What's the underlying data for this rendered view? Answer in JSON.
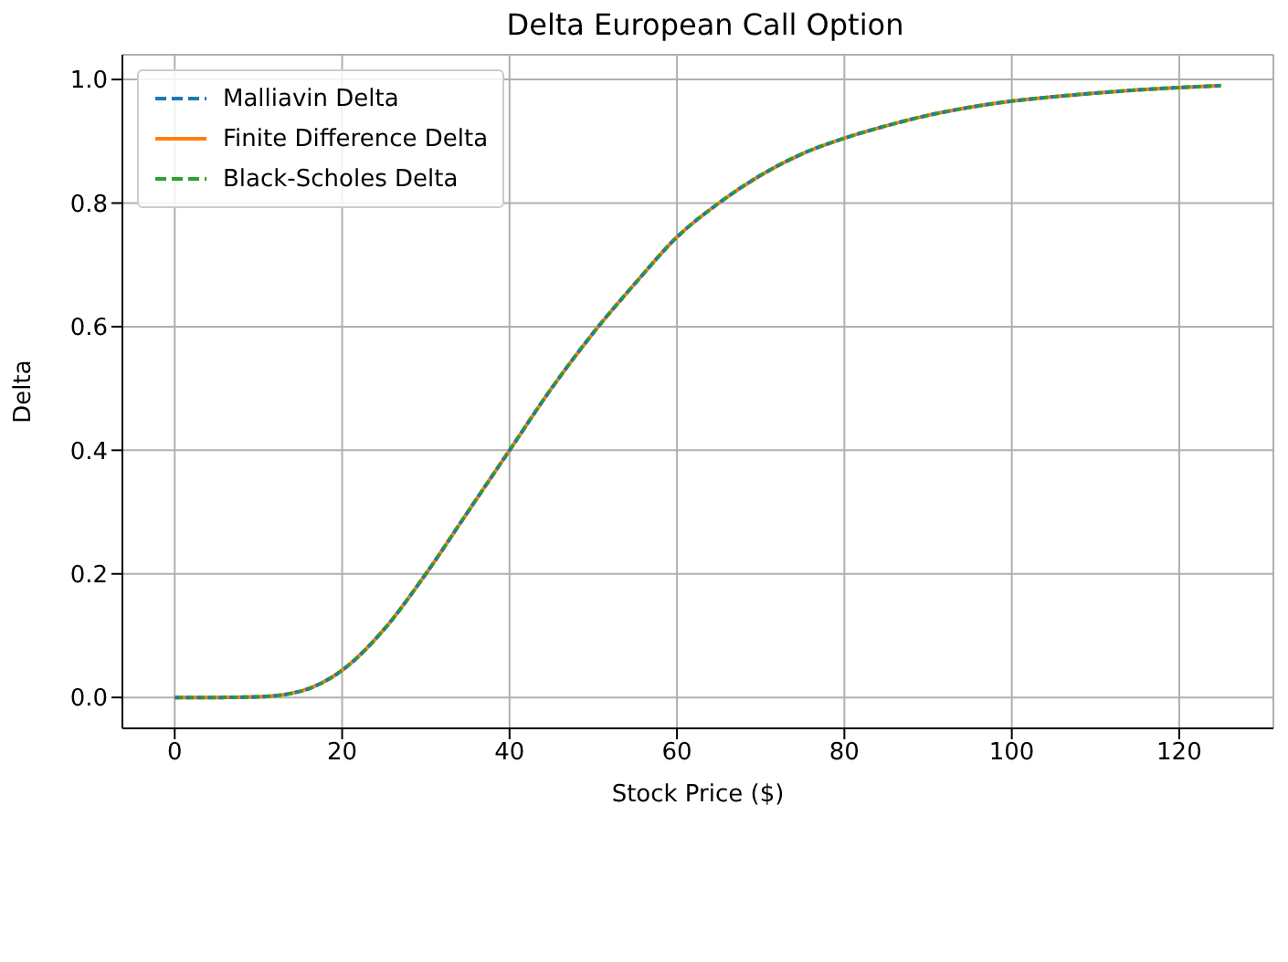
{
  "chart_data": {
    "type": "line",
    "title": "Delta European Call Option",
    "xlabel": "Stock Price ($)",
    "ylabel": "Delta",
    "x": [
      0,
      5,
      10,
      15,
      20,
      25,
      30,
      35,
      40,
      45,
      50,
      55,
      60,
      65,
      70,
      75,
      80,
      85,
      90,
      95,
      100,
      105,
      110,
      115,
      120,
      125
    ],
    "series": [
      {
        "name": "Malliavin Delta",
        "color": "#1f77b4",
        "line_style": "dashed",
        "values": [
          0,
          0,
          0.001,
          0.01,
          0.044,
          0.11,
          0.2,
          0.3,
          0.4,
          0.5,
          0.59,
          0.67,
          0.745,
          0.8,
          0.845,
          0.88,
          0.905,
          0.925,
          0.942,
          0.955,
          0.965,
          0.972,
          0.978,
          0.983,
          0.987,
          0.99
        ]
      },
      {
        "name": "Finite Difference Delta",
        "color": "#ff7f0e",
        "line_style": "solid",
        "values": [
          0,
          0,
          0.001,
          0.01,
          0.044,
          0.11,
          0.2,
          0.3,
          0.4,
          0.5,
          0.59,
          0.67,
          0.745,
          0.8,
          0.845,
          0.88,
          0.905,
          0.925,
          0.942,
          0.955,
          0.965,
          0.972,
          0.978,
          0.983,
          0.987,
          0.99
        ]
      },
      {
        "name": "Black-Scholes Delta",
        "color": "#2ca02c",
        "line_style": "dashed",
        "values": [
          0,
          0,
          0.001,
          0.01,
          0.044,
          0.11,
          0.2,
          0.3,
          0.4,
          0.5,
          0.59,
          0.67,
          0.745,
          0.8,
          0.845,
          0.88,
          0.905,
          0.925,
          0.942,
          0.955,
          0.965,
          0.972,
          0.978,
          0.983,
          0.987,
          0.99
        ]
      }
    ],
    "xlim": [
      -6.25,
      131.25
    ],
    "xticks": [
      0,
      20,
      40,
      60,
      80,
      100,
      120
    ],
    "ylim": [
      -0.05,
      1.04
    ],
    "yticks": [
      {
        "value": 0,
        "label": "0.0"
      },
      {
        "value": 0.2,
        "label": "0.2"
      },
      {
        "value": 0.4,
        "label": "0.4"
      },
      {
        "value": 0.6,
        "label": "0.6"
      },
      {
        "value": 0.8,
        "label": "0.8"
      },
      {
        "value": 1,
        "label": "1.0"
      }
    ],
    "grid": true,
    "legend": "top left",
    "marker": "none"
  }
}
